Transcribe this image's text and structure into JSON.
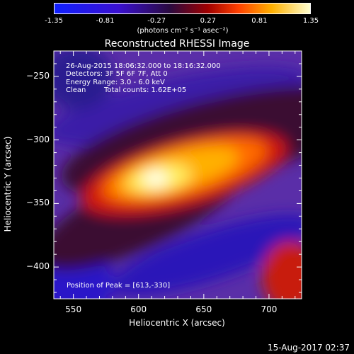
{
  "colorbar": {
    "ticks": [
      "-1.35",
      "-0.81",
      "-0.27",
      "0.27",
      "0.81",
      "1.35"
    ],
    "unit_label": "(photons cm⁻² s⁻¹ asec⁻²)",
    "range": [
      -1.35,
      1.35
    ]
  },
  "chart_data": {
    "type": "heatmap",
    "title": "Reconstructed RHESSI Image",
    "xlabel": "Heliocentric X (arcsec)",
    "ylabel": "Heliocentric Y (arcsec)",
    "xlim": [
      535,
      725
    ],
    "ylim": [
      -425,
      -230
    ],
    "xticks": [
      550,
      600,
      650,
      700
    ],
    "yticks": [
      -250,
      -300,
      -350,
      -400
    ],
    "colormap": "blue-purple-red-yellow-white",
    "peak": [
      613,
      -330
    ],
    "annotations": {
      "time_range": "26-Aug-2015 18:06:32.000 to 18:16:32.000",
      "detectors": "Detectors: 3F 5F 6F 7F, Att 0",
      "energy": "Energy Range: 3.0 - 6.0 keV",
      "method": "Clean",
      "counts": "Total counts: 1.62E+05",
      "peak_label": "Position of Peak = [613,-330]"
    }
  },
  "footer": {
    "timestamp": "15-Aug-2017 02:37"
  }
}
